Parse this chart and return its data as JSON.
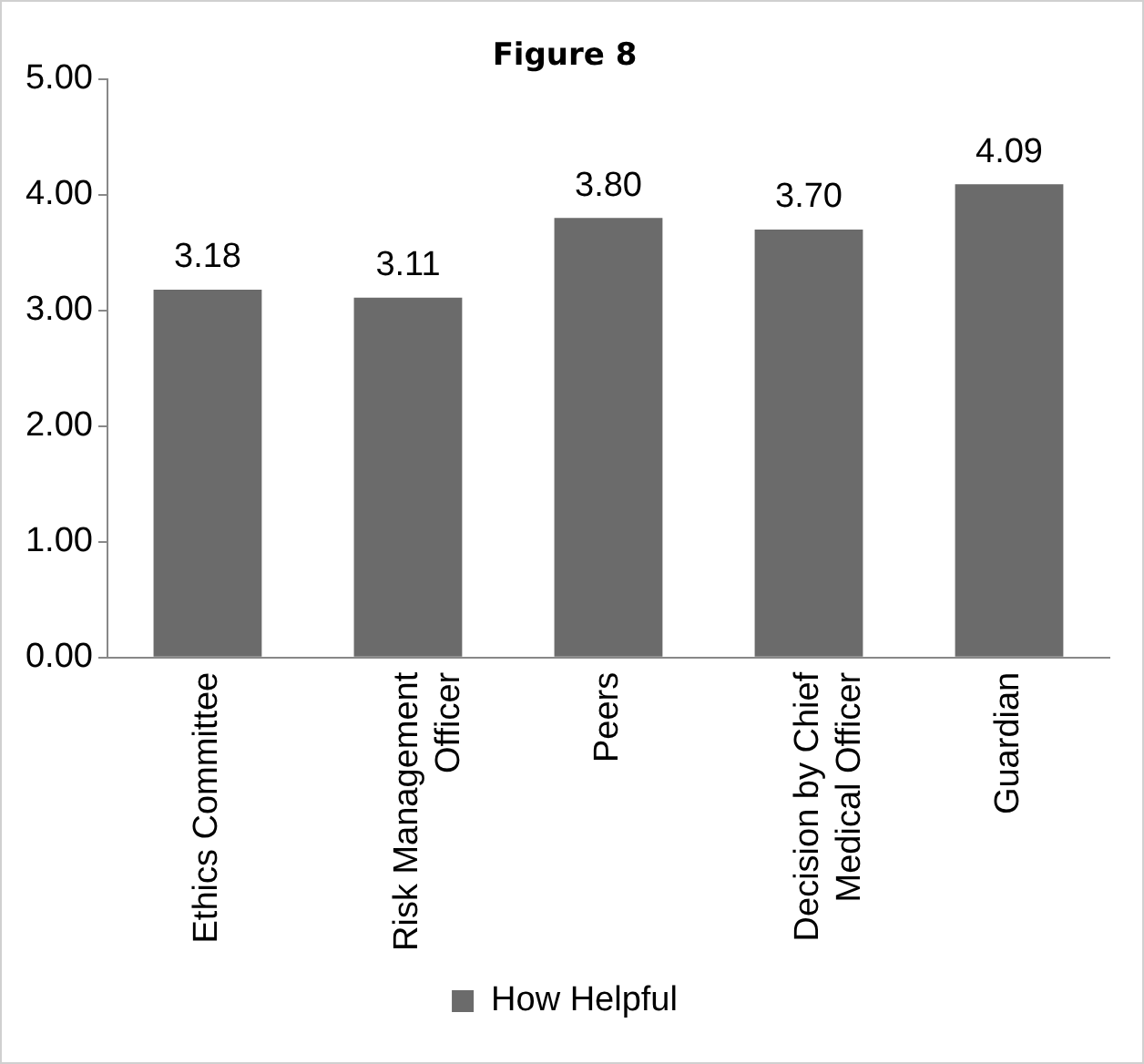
{
  "chart_data": {
    "type": "bar",
    "title": "Figure 8",
    "categories": [
      "Ethics Committee",
      "Risk Management Officer",
      "Peers",
      "Decision by Chief Medical Officer",
      "Guardian"
    ],
    "series": [
      {
        "name": "How Helpful",
        "color": "#6b6b6b",
        "values": [
          3.18,
          3.11,
          3.8,
          3.7,
          4.09
        ],
        "value_labels": [
          "3.18",
          "3.11",
          "3.80",
          "3.70",
          "4.09"
        ]
      }
    ],
    "ylim": [
      0,
      5
    ],
    "yticks": [
      {
        "value": 0,
        "label": "0.00"
      },
      {
        "value": 1,
        "label": "1.00"
      },
      {
        "value": 2,
        "label": "2.00"
      },
      {
        "value": 3,
        "label": "3.00"
      },
      {
        "value": 4,
        "label": "4.00"
      },
      {
        "value": 5,
        "label": "5.00"
      }
    ],
    "grid": false,
    "legend": "bottom"
  }
}
